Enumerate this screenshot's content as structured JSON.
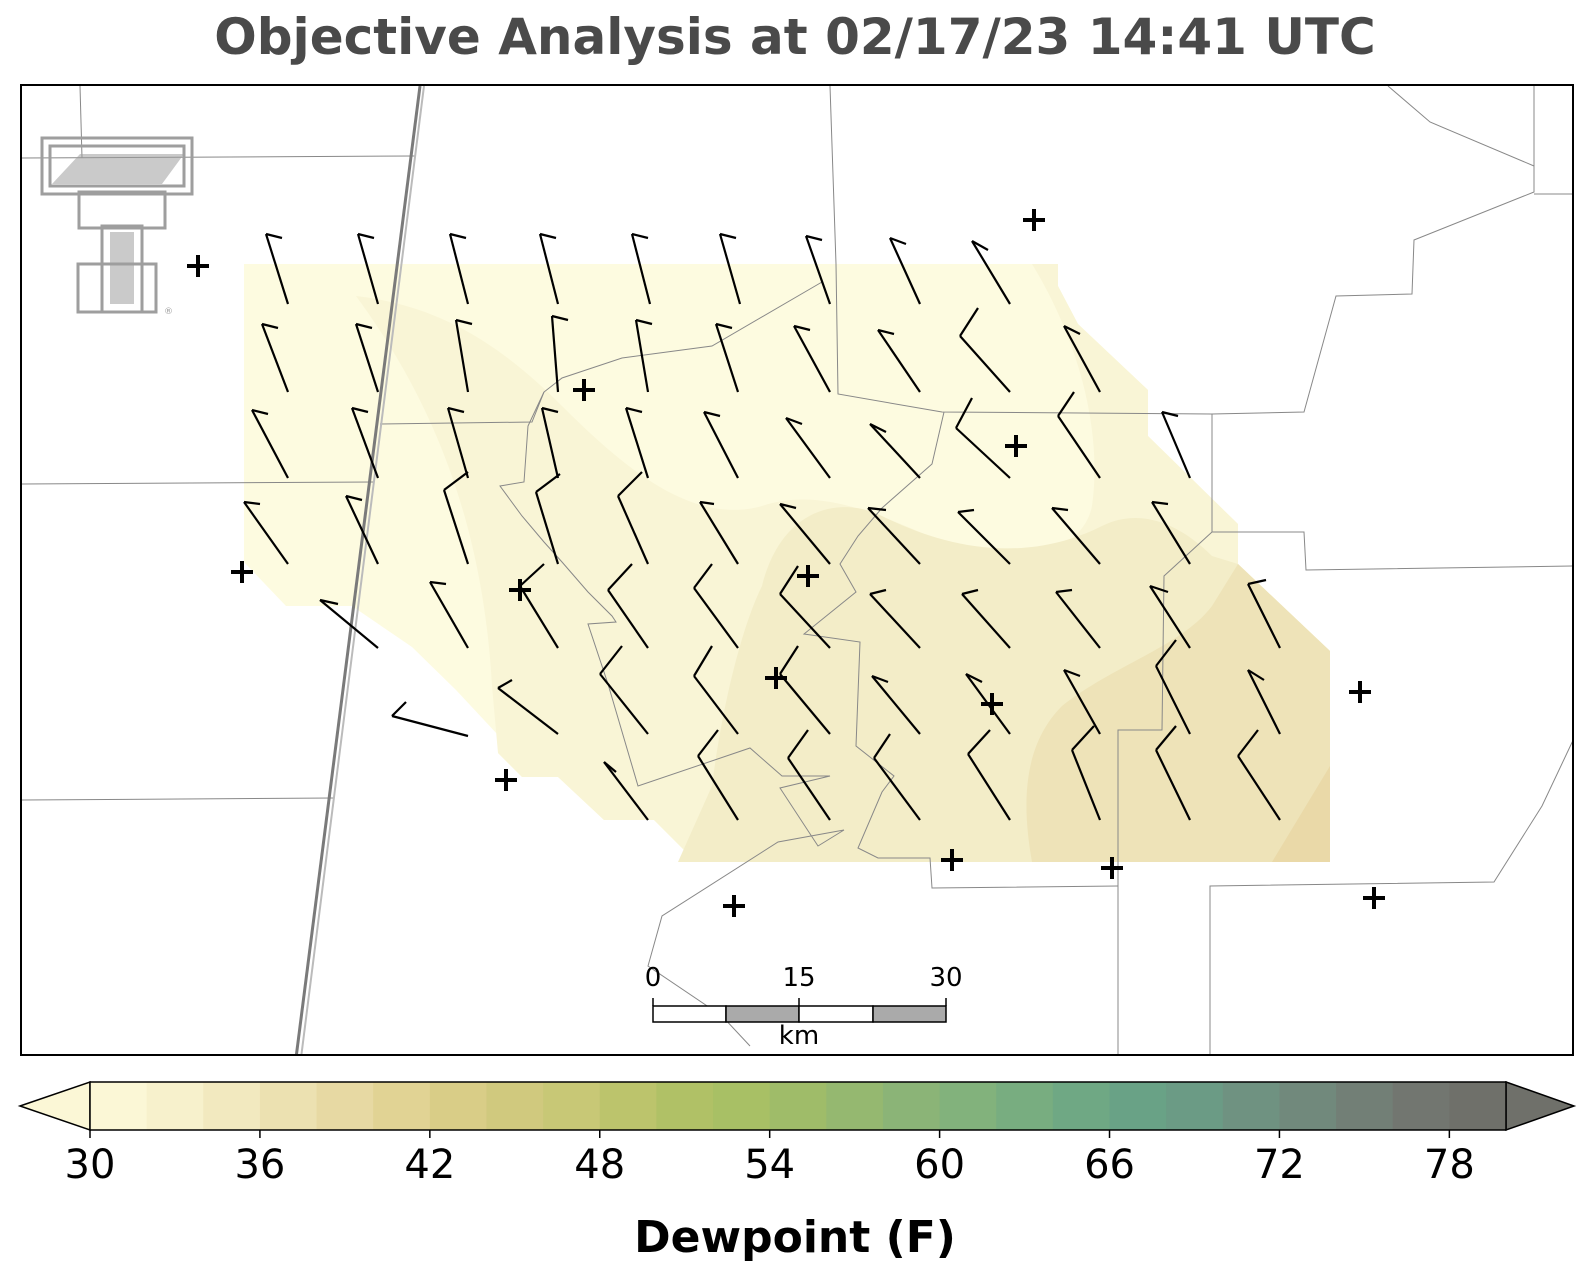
{
  "title": "Objective Analysis at 02/17/23 14:41 UTC",
  "logo": {
    "name": "texas-tech-double-t-logo",
    "color": "#9e9e9e"
  },
  "map": {
    "field": "dewpoint",
    "field_colors": [
      "#fdfbe0",
      "#f9f5d6",
      "#f3edc8",
      "#eee3b8"
    ],
    "boundary_color": "#888888",
    "highway_color": "#7a7a7a",
    "barb_color": "#000000",
    "station_marker": "plus"
  },
  "scale_bar": {
    "ticks": [
      "0",
      "15",
      "30"
    ],
    "unit": "km",
    "fill_colors": [
      "#ffffff",
      "#aaaaaa"
    ]
  },
  "colorbar": {
    "label": "Dewpoint (F)",
    "min": 30,
    "max": 80,
    "extend": "both",
    "tick_labels": [
      "30",
      "36",
      "42",
      "48",
      "54",
      "60",
      "66",
      "72",
      "78"
    ],
    "colors": [
      "#fbf7d6",
      "#f7f1cc",
      "#f2e9bf",
      "#ece1b1",
      "#e7d9a3",
      "#e1d394",
      "#d9cd87",
      "#d0c97e",
      "#c8c876",
      "#bcc46c",
      "#b0c166",
      "#a8c065",
      "#9fbc69",
      "#95b870",
      "#8bb477",
      "#82b27c",
      "#78ad80",
      "#6fa884",
      "#69a286",
      "#6b9b85",
      "#6f9281",
      "#71897c",
      "#727f76",
      "#727670",
      "#6f706a"
    ]
  }
}
